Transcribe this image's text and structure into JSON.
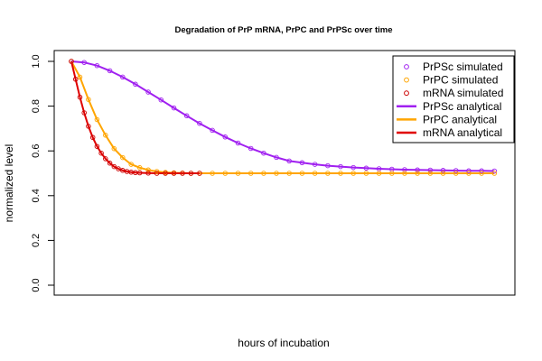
{
  "chart_data": {
    "type": "line",
    "title": "Degradation of PrP mRNA, PrPC and PrPSc over time",
    "xlabel": "hours of incubation",
    "ylabel": "normalized level",
    "ylim": [
      0.0,
      1.0
    ],
    "yticks": [
      "0.0",
      "0.2",
      "0.4",
      "0.6",
      "0.8",
      "1.0"
    ],
    "xrange": [
      0,
      100
    ],
    "legend_position": "top-right",
    "series": [
      {
        "name": "PrPSc simulated",
        "kind": "points",
        "color": "#a020f0",
        "x": [
          0,
          3,
          6,
          9,
          12,
          15,
          18,
          21,
          24,
          27,
          30,
          33,
          36,
          39,
          42,
          45,
          48,
          51,
          54,
          57,
          60,
          63,
          66,
          69,
          72,
          75,
          78,
          81,
          84,
          87,
          90,
          93,
          96,
          99
        ],
        "y": [
          1.0,
          0.995,
          0.981,
          0.958,
          0.93,
          0.898,
          0.863,
          0.828,
          0.792,
          0.757,
          0.723,
          0.692,
          0.662,
          0.635,
          0.611,
          0.59,
          0.571,
          0.555,
          0.547,
          0.54,
          0.534,
          0.53,
          0.526,
          0.523,
          0.52,
          0.518,
          0.516,
          0.515,
          0.514,
          0.513,
          0.512,
          0.511,
          0.511,
          0.51
        ]
      },
      {
        "name": "PrPC simulated",
        "kind": "points",
        "color": "#ffa500",
        "x": [
          0,
          2,
          4,
          6,
          8,
          10,
          12,
          14,
          16,
          18,
          20,
          22,
          24,
          26,
          28,
          30,
          33,
          36,
          39,
          42,
          45,
          48,
          51,
          54,
          57,
          60,
          63,
          66,
          69,
          72,
          75,
          78,
          81,
          84,
          87,
          90,
          93,
          96,
          99
        ],
        "y": [
          1.0,
          0.93,
          0.83,
          0.74,
          0.67,
          0.61,
          0.57,
          0.54,
          0.525,
          0.515,
          0.508,
          0.504,
          0.502,
          0.501,
          0.5,
          0.5,
          0.5,
          0.5,
          0.5,
          0.5,
          0.5,
          0.5,
          0.5,
          0.5,
          0.5,
          0.5,
          0.5,
          0.5,
          0.5,
          0.5,
          0.5,
          0.5,
          0.5,
          0.5,
          0.5,
          0.5,
          0.5,
          0.5,
          0.5
        ]
      },
      {
        "name": "mRNA simulated",
        "kind": "points",
        "color": "#cc0000",
        "x": [
          0,
          1,
          2,
          3,
          4,
          5,
          6,
          7,
          8,
          9,
          10,
          11,
          12,
          13,
          14,
          15,
          16,
          18,
          20,
          22,
          24,
          26,
          28,
          30
        ],
        "y": [
          1.0,
          0.92,
          0.84,
          0.77,
          0.71,
          0.66,
          0.62,
          0.59,
          0.565,
          0.545,
          0.53,
          0.52,
          0.513,
          0.508,
          0.505,
          0.503,
          0.502,
          0.501,
          0.5,
          0.5,
          0.5,
          0.5,
          0.5,
          0.5
        ]
      },
      {
        "name": "PrPSc analytical",
        "kind": "line",
        "color": "#a020f0",
        "x": [
          0,
          3,
          6,
          9,
          12,
          15,
          18,
          21,
          24,
          27,
          30,
          33,
          36,
          39,
          42,
          45,
          48,
          51,
          54,
          57,
          60,
          63,
          66,
          69,
          72,
          75,
          78,
          81,
          84,
          87,
          90,
          93,
          96,
          99
        ],
        "y": [
          1.0,
          0.995,
          0.981,
          0.958,
          0.93,
          0.898,
          0.863,
          0.828,
          0.792,
          0.757,
          0.723,
          0.692,
          0.662,
          0.635,
          0.611,
          0.59,
          0.571,
          0.555,
          0.547,
          0.54,
          0.534,
          0.53,
          0.526,
          0.523,
          0.52,
          0.518,
          0.516,
          0.515,
          0.514,
          0.513,
          0.512,
          0.511,
          0.511,
          0.51
        ]
      },
      {
        "name": "PrPC analytical",
        "kind": "line",
        "color": "#ffa500",
        "x": [
          0,
          2,
          4,
          6,
          8,
          10,
          12,
          14,
          16,
          18,
          20,
          22,
          24,
          26,
          28,
          30,
          40,
          50,
          60,
          70,
          80,
          90,
          99
        ],
        "y": [
          1.0,
          0.93,
          0.83,
          0.74,
          0.67,
          0.61,
          0.57,
          0.54,
          0.525,
          0.515,
          0.508,
          0.504,
          0.502,
          0.501,
          0.5,
          0.5,
          0.5,
          0.5,
          0.5,
          0.5,
          0.5,
          0.5,
          0.5
        ]
      },
      {
        "name": "mRNA analytical",
        "kind": "line",
        "color": "#e00000",
        "x": [
          0,
          1,
          2,
          3,
          4,
          5,
          6,
          7,
          8,
          9,
          10,
          11,
          12,
          13,
          14,
          15,
          16,
          18,
          20,
          22,
          24,
          26,
          28,
          30
        ],
        "y": [
          1.0,
          0.92,
          0.84,
          0.77,
          0.71,
          0.66,
          0.62,
          0.59,
          0.565,
          0.545,
          0.53,
          0.52,
          0.513,
          0.508,
          0.505,
          0.503,
          0.502,
          0.501,
          0.5,
          0.5,
          0.5,
          0.5,
          0.5,
          0.5
        ]
      }
    ]
  }
}
